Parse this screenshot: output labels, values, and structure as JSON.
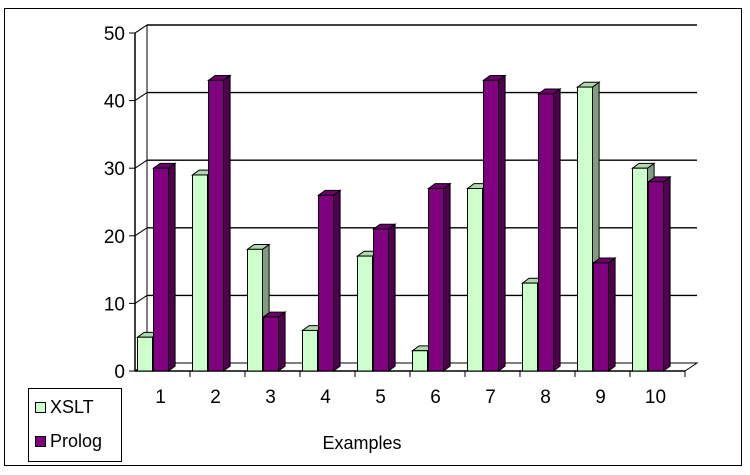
{
  "chart_data": {
    "type": "bar",
    "categories": [
      "1",
      "2",
      "3",
      "4",
      "5",
      "6",
      "7",
      "8",
      "9",
      "10"
    ],
    "series": [
      {
        "name": "XSLT",
        "values": [
          5,
          29,
          18,
          6,
          17,
          3,
          27,
          13,
          42,
          30
        ],
        "color": "#ccffcc"
      },
      {
        "name": "Prolog",
        "values": [
          30,
          43,
          8,
          26,
          21,
          27,
          43,
          41,
          16,
          28
        ],
        "color": "#800080"
      }
    ],
    "xlabel": "Examples",
    "ylabel": "",
    "yticks": [
      "0",
      "10",
      "20",
      "30",
      "40",
      "50"
    ],
    "ylim": [
      0,
      50
    ],
    "grid": true,
    "legend_position": "bottom-left",
    "style": "3d"
  }
}
